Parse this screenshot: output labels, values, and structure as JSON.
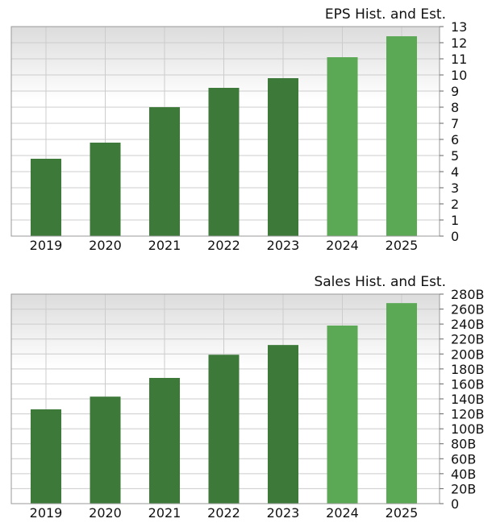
{
  "colors": {
    "historical": "#3d7a3a",
    "estimate": "#5ca955",
    "grid": "#cccccc",
    "plot_border": "#999999",
    "plot_bg_top": "#dcdcdc",
    "plot_bg_bottom": "#ffffff"
  },
  "chart_data": [
    {
      "type": "bar",
      "title": "EPS Hist. and Est.",
      "categories": [
        "2019",
        "2020",
        "2021",
        "2022",
        "2023",
        "2024",
        "2025"
      ],
      "series": [
        {
          "values": [
            4.8,
            5.8,
            8.0,
            9.2,
            9.8,
            11.1,
            12.4
          ]
        }
      ],
      "estimate_categories": [
        "2024",
        "2025"
      ],
      "y_axis_position": "right",
      "ylim": [
        0,
        13
      ],
      "yticks": [
        0,
        1,
        2,
        3,
        4,
        5,
        6,
        7,
        8,
        9,
        10,
        11,
        12,
        13
      ],
      "ytick_labels": [
        "0",
        "1",
        "2",
        "3",
        "4",
        "5",
        "6",
        "7",
        "8",
        "9",
        "10",
        "11",
        "12",
        "13"
      ],
      "grid": true,
      "xlabel": "",
      "ylabel": ""
    },
    {
      "type": "bar",
      "title": "Sales Hist. and Est.",
      "categories": [
        "2019",
        "2020",
        "2021",
        "2022",
        "2023",
        "2024",
        "2025"
      ],
      "series": [
        {
          "values": [
            126,
            143,
            168,
            199,
            212,
            238,
            268
          ]
        }
      ],
      "value_unit": "billions",
      "estimate_categories": [
        "2024",
        "2025"
      ],
      "y_axis_position": "right",
      "ylim": [
        0,
        280
      ],
      "yticks": [
        0,
        20,
        40,
        60,
        80,
        100,
        120,
        140,
        160,
        180,
        200,
        220,
        240,
        260,
        280
      ],
      "ytick_labels": [
        "0",
        "20B",
        "40B",
        "60B",
        "80B",
        "100B",
        "120B",
        "140B",
        "160B",
        "180B",
        "200B",
        "220B",
        "240B",
        "260B",
        "280B"
      ],
      "grid": true,
      "xlabel": "",
      "ylabel": ""
    }
  ]
}
